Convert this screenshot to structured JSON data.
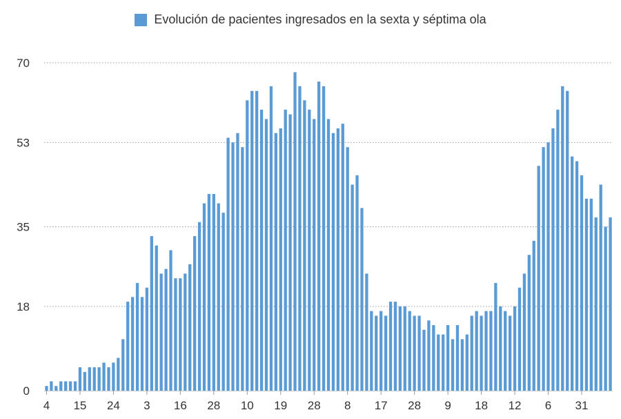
{
  "chart_data": {
    "type": "bar",
    "title": "",
    "xlabel": "",
    "ylabel": "",
    "ylim": [
      0,
      70
    ],
    "yticks": [
      0,
      18,
      35,
      53,
      70
    ],
    "grid": true,
    "legend_position": "top-center",
    "series": [
      {
        "name": "Evolución de pacientes ingresados en la sexta y séptima ola",
        "color": "#5b9bd5",
        "values": [
          1,
          2,
          1,
          2,
          2,
          2,
          2,
          5,
          4,
          5,
          5,
          5,
          6,
          5,
          6,
          7,
          11,
          19,
          20,
          23,
          20,
          22,
          33,
          31,
          25,
          26,
          30,
          24,
          24,
          25,
          27,
          33,
          36,
          40,
          42,
          42,
          40,
          38,
          54,
          53,
          55,
          52,
          62,
          64,
          64,
          60,
          58,
          65,
          55,
          56,
          60,
          59,
          68,
          65,
          62,
          60,
          58,
          66,
          65,
          58,
          55,
          56,
          57,
          52,
          44,
          46,
          39,
          25,
          17,
          16,
          17,
          16,
          19,
          19,
          18,
          18,
          17,
          16,
          16,
          13,
          15,
          14,
          12,
          12,
          14,
          11,
          14,
          11,
          12,
          16,
          17,
          16,
          17,
          17,
          23,
          18,
          17,
          16,
          18,
          22,
          25,
          29,
          32,
          48,
          52,
          53,
          56,
          60,
          65,
          64,
          50,
          49,
          46,
          41,
          41,
          37,
          44,
          35,
          37
        ]
      }
    ],
    "x_tick_labels": [
      {
        "index": 0,
        "label": "4"
      },
      {
        "index": 7,
        "label": "15"
      },
      {
        "index": 14,
        "label": "24"
      },
      {
        "index": 21,
        "label": "3"
      },
      {
        "index": 28,
        "label": "16"
      },
      {
        "index": 35,
        "label": "28"
      },
      {
        "index": 42,
        "label": "10"
      },
      {
        "index": 49,
        "label": "19"
      },
      {
        "index": 56,
        "label": "28"
      },
      {
        "index": 63,
        "label": "8"
      },
      {
        "index": 70,
        "label": "17"
      },
      {
        "index": 77,
        "label": "28"
      },
      {
        "index": 84,
        "label": "9"
      },
      {
        "index": 91,
        "label": "18"
      },
      {
        "index": 98,
        "label": "12"
      },
      {
        "index": 105,
        "label": "6"
      },
      {
        "index": 112,
        "label": "31"
      }
    ]
  }
}
